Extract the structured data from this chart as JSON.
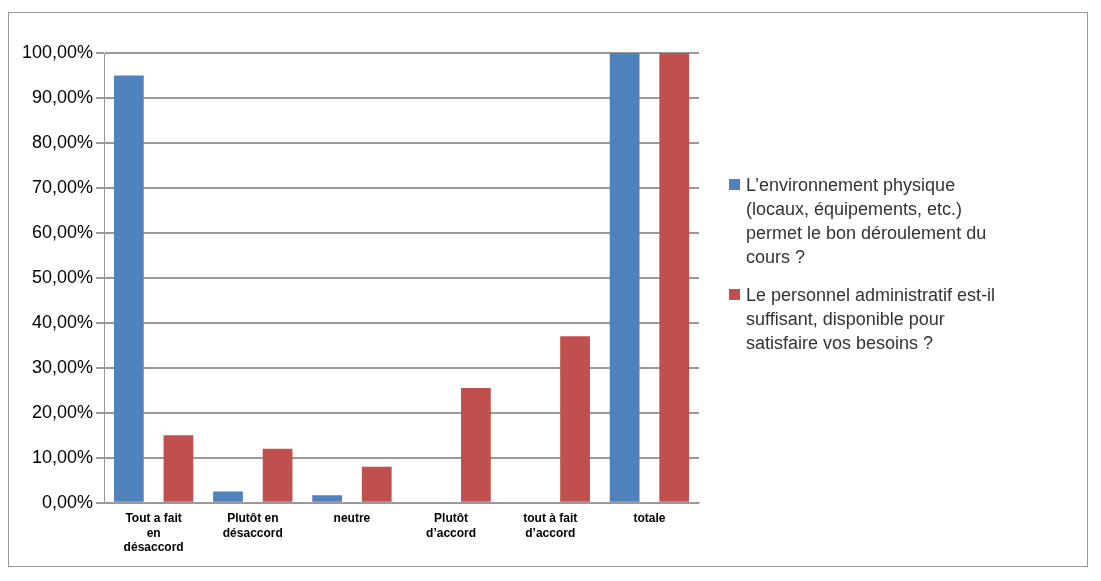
{
  "chart_data": {
    "type": "bar",
    "categories": [
      "Tout a fait en désaccord",
      "Plutôt en désaccord",
      "neutre",
      "Plutôt d’accord",
      "tout à fait d’accord",
      "totale"
    ],
    "series": [
      {
        "name": "L’environnement physique (locaux, équipements, etc.) permet le bon déroulement du cours ?",
        "color": "#4f81bd",
        "values": [
          95,
          2.5,
          1.7,
          0,
          0,
          100
        ]
      },
      {
        "name": "Le personnel administratif est-il suffisant, disponible pour satisfaire vos besoins ?",
        "color": "#c0504d",
        "values": [
          15,
          12,
          8,
          25.5,
          37,
          100
        ]
      }
    ],
    "ylim": [
      0,
      100
    ],
    "yticks": [
      {
        "value": 0,
        "label": "0,00%"
      },
      {
        "value": 10,
        "label": "10,00%"
      },
      {
        "value": 20,
        "label": "20,00%"
      },
      {
        "value": 30,
        "label": "30,00%"
      },
      {
        "value": 40,
        "label": "40,00%"
      },
      {
        "value": 50,
        "label": "50,00%"
      },
      {
        "value": 60,
        "label": "60,00%"
      },
      {
        "value": 70,
        "label": "70,00%"
      },
      {
        "value": 80,
        "label": "80,00%"
      },
      {
        "value": 90,
        "label": "90,00%"
      },
      {
        "value": 100,
        "label": "100,00%"
      }
    ],
    "grid": "y",
    "legend": "right"
  }
}
